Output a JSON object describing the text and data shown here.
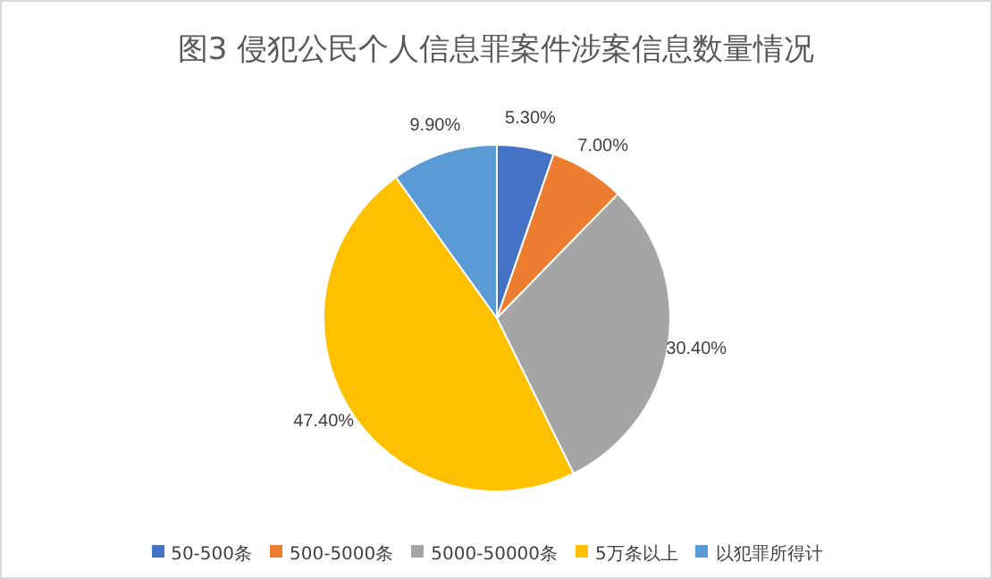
{
  "chart_data": {
    "type": "pie",
    "title": "图3 侵犯公民个人信息罪案件涉案信息数量情况",
    "categories": [
      "50-500条",
      "500-5000条",
      "5000-50000条",
      "5万条以上",
      "以犯罪所得计"
    ],
    "values": [
      5.3,
      7.0,
      30.4,
      47.4,
      9.9
    ],
    "colors": [
      "#4472c4",
      "#ed7d31",
      "#a5a5a5",
      "#ffc000",
      "#5b9bd5"
    ],
    "value_labels": [
      "5.30%",
      "7.00%",
      "30.40%",
      "47.40%",
      "9.90%"
    ],
    "legend": "bottom"
  }
}
